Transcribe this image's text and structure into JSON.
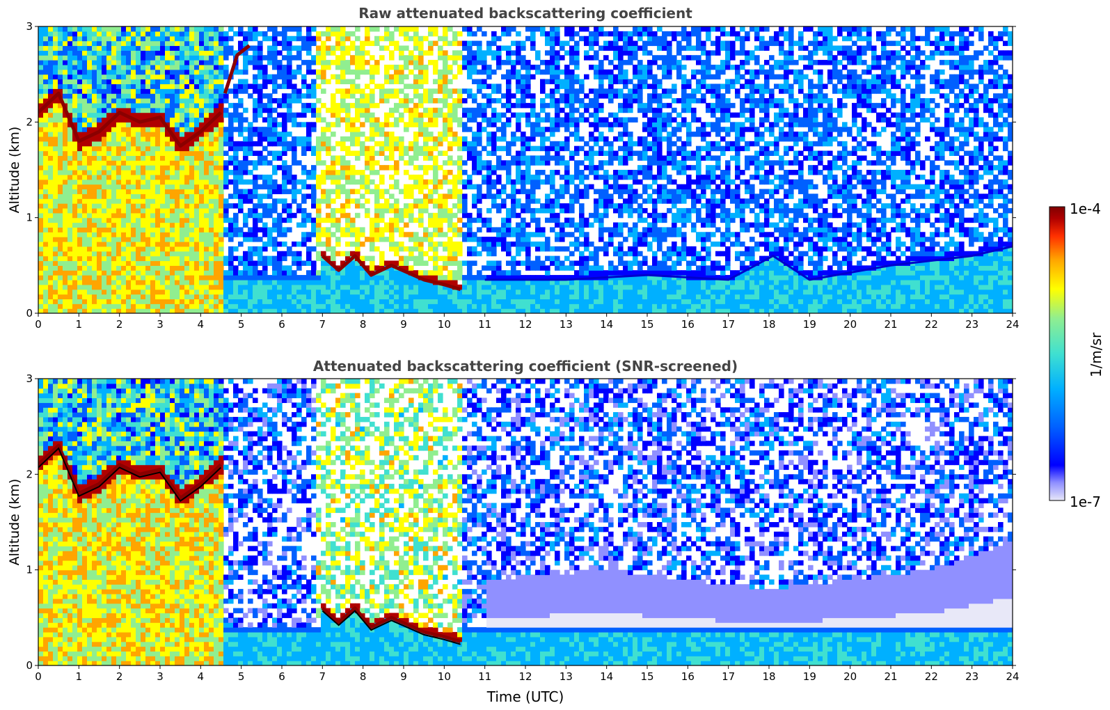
{
  "chart_data": [
    {
      "type": "heatmap",
      "title": "Raw attenuated backscattering coefficient",
      "xlabel": "",
      "ylabel": "Altitude (km)",
      "xlim": [
        0,
        24
      ],
      "ylim": [
        0,
        3
      ],
      "x_ticks": [
        "0",
        "1",
        "2",
        "3",
        "4",
        "5",
        "6",
        "7",
        "8",
        "9",
        "10",
        "11",
        "12",
        "13",
        "14",
        "15",
        "16",
        "17",
        "18",
        "19",
        "20",
        "21",
        "22",
        "23",
        "24"
      ],
      "y_ticks": [
        "0",
        "1",
        "2",
        "3"
      ],
      "features": [
        {
          "kind": "cloud_layer",
          "t": [
            0.0,
            0.5,
            1.0,
            1.5,
            2.0,
            2.5,
            3.0,
            3.5,
            4.0,
            4.5
          ],
          "alt_km": [
            2.1,
            2.3,
            1.8,
            1.9,
            2.1,
            2.0,
            2.05,
            1.75,
            1.9,
            2.1
          ],
          "log10_beta": -4.0
        },
        {
          "kind": "rising_layer",
          "t": [
            4.6,
            4.9,
            5.2
          ],
          "alt_km": [
            2.3,
            2.7,
            2.8
          ],
          "log10_beta": -4.0
        },
        {
          "kind": "boundary_layer_top",
          "t": [
            7.0,
            7.4,
            7.8,
            8.2,
            8.7,
            9.5,
            10.0,
            10.4
          ],
          "alt_km": [
            0.6,
            0.45,
            0.6,
            0.4,
            0.5,
            0.35,
            0.3,
            0.25
          ],
          "log10_beta": -4.0
        },
        {
          "kind": "boundary_layer_top",
          "t": [
            11,
            13,
            15,
            17,
            18.1,
            19,
            21,
            23,
            24
          ],
          "alt_km": [
            0.35,
            0.35,
            0.4,
            0.35,
            0.6,
            0.35,
            0.5,
            0.6,
            0.7
          ],
          "log10_beta": -5.8
        }
      ]
    },
    {
      "type": "heatmap",
      "title": "Attenuated backscattering coefficient (SNR-screened)",
      "xlabel": "Time (UTC)",
      "ylabel": "Altitude (km)",
      "xlim": [
        0,
        24
      ],
      "ylim": [
        0,
        3
      ],
      "x_ticks": [
        "0",
        "1",
        "2",
        "3",
        "4",
        "5",
        "6",
        "7",
        "8",
        "9",
        "10",
        "11",
        "12",
        "13",
        "14",
        "15",
        "16",
        "17",
        "18",
        "19",
        "20",
        "21",
        "22",
        "23",
        "24"
      ],
      "y_ticks": [
        "0",
        "1",
        "2",
        "3"
      ],
      "features": [
        {
          "kind": "cloud_layer",
          "t": [
            0.0,
            0.5,
            1.0,
            1.5,
            2.0,
            2.5,
            3.0,
            3.5,
            4.0,
            4.5
          ],
          "alt_km": [
            2.1,
            2.3,
            1.8,
            1.9,
            2.1,
            2.0,
            2.05,
            1.75,
            1.9,
            2.1
          ],
          "log10_beta": -4.0
        },
        {
          "kind": "boundary_layer_top",
          "t": [
            7.0,
            7.4,
            7.8,
            8.2,
            8.7,
            9.5,
            10.0,
            10.4
          ],
          "alt_km": [
            0.6,
            0.45,
            0.6,
            0.4,
            0.5,
            0.35,
            0.3,
            0.25
          ],
          "log10_beta": -4.0
        },
        {
          "kind": "screened_region",
          "t": [
            11,
            14,
            16,
            18,
            20,
            22,
            24
          ],
          "alt_km": [
            0.9,
            1.0,
            0.9,
            0.8,
            0.9,
            1.0,
            1.3
          ]
        }
      ]
    }
  ],
  "colorbar": {
    "label": "1/m/sr",
    "max_label": "1e-4",
    "min_label": "1e-7",
    "colormap": [
      "#e8e8f8",
      "#9090ff",
      "#0000ff",
      "#0060ff",
      "#00b0ff",
      "#40e0d0",
      "#90ee90",
      "#ffff00",
      "#ffa500",
      "#ff3000",
      "#b00000",
      "#800000"
    ]
  }
}
